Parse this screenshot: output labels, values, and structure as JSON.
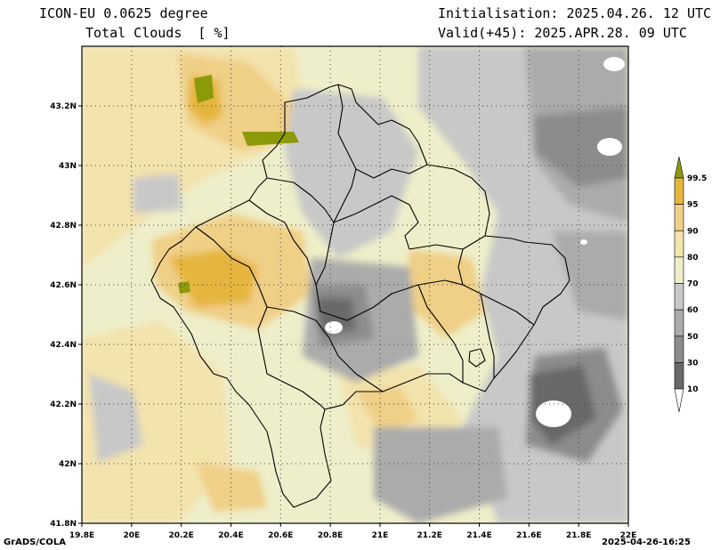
{
  "header": {
    "model": "ICON-EU 0.0625 degree",
    "variable": "Total Clouds  [ %]",
    "initialisation": "Initialisation: 2025.04.26. 12 UTC",
    "valid": "Valid(+45): 2025.APR.28. 09 UTC"
  },
  "footer": {
    "credit": "GrADS/COLA",
    "timestamp": "2025-04-26-16:25"
  },
  "map": {
    "lon_min": 19.8,
    "lon_max": 22.0,
    "lat_min": 41.8,
    "lat_max": 43.4,
    "lat_ticks": [
      {
        "value": 41.8,
        "label": "41.8N"
      },
      {
        "value": 42.0,
        "label": "42N"
      },
      {
        "value": 42.2,
        "label": "42.2N"
      },
      {
        "value": 42.4,
        "label": "42.4N"
      },
      {
        "value": 42.6,
        "label": "42.6N"
      },
      {
        "value": 42.8,
        "label": "42.8N"
      },
      {
        "value": 43.0,
        "label": "43N"
      },
      {
        "value": 43.2,
        "label": "43.2N"
      }
    ],
    "lon_ticks": [
      {
        "value": 19.8,
        "label": "19.8E"
      },
      {
        "value": 20.0,
        "label": "20E"
      },
      {
        "value": 20.2,
        "label": "20.2E"
      },
      {
        "value": 20.4,
        "label": "20.4E"
      },
      {
        "value": 20.6,
        "label": "20.6E"
      },
      {
        "value": 20.8,
        "label": "20.8E"
      },
      {
        "value": 21.0,
        "label": "21E"
      },
      {
        "value": 21.2,
        "label": "21.2E"
      },
      {
        "value": 21.4,
        "label": "21.4E"
      },
      {
        "value": 21.6,
        "label": "21.6E"
      },
      {
        "value": 21.8,
        "label": "21.8E"
      },
      {
        "value": 22.0,
        "label": "22E"
      }
    ]
  },
  "legend": {
    "levels": [
      {
        "label": "99.5",
        "color": "#8c9a0a"
      },
      {
        "label": "95",
        "color": "#e6b53c"
      },
      {
        "label": "90",
        "color": "#f0cf86"
      },
      {
        "label": "80",
        "color": "#f3e3ad"
      },
      {
        "label": "70",
        "color": "#eeeeca"
      },
      {
        "label": "60",
        "color": "#c8c8c8"
      },
      {
        "label": "50",
        "color": "#ababab"
      },
      {
        "label": "30",
        "color": "#8c8c8c"
      },
      {
        "label": "10",
        "color": "#696969"
      }
    ],
    "top_color": "#8c9a0a",
    "bottom_color": "#ffffff"
  },
  "colors": {
    "clear": "#ffffff",
    "c30": "#696969",
    "c50": "#8c8c8c",
    "c60": "#ababab",
    "c70": "#c8c8c8",
    "c80": "#eeeeca",
    "c90": "#f3e3ad",
    "c95": "#f0cf86",
    "c99": "#e6b53c",
    "cmax": "#8c9a0a",
    "border": "#000000",
    "grid": "#444444"
  }
}
